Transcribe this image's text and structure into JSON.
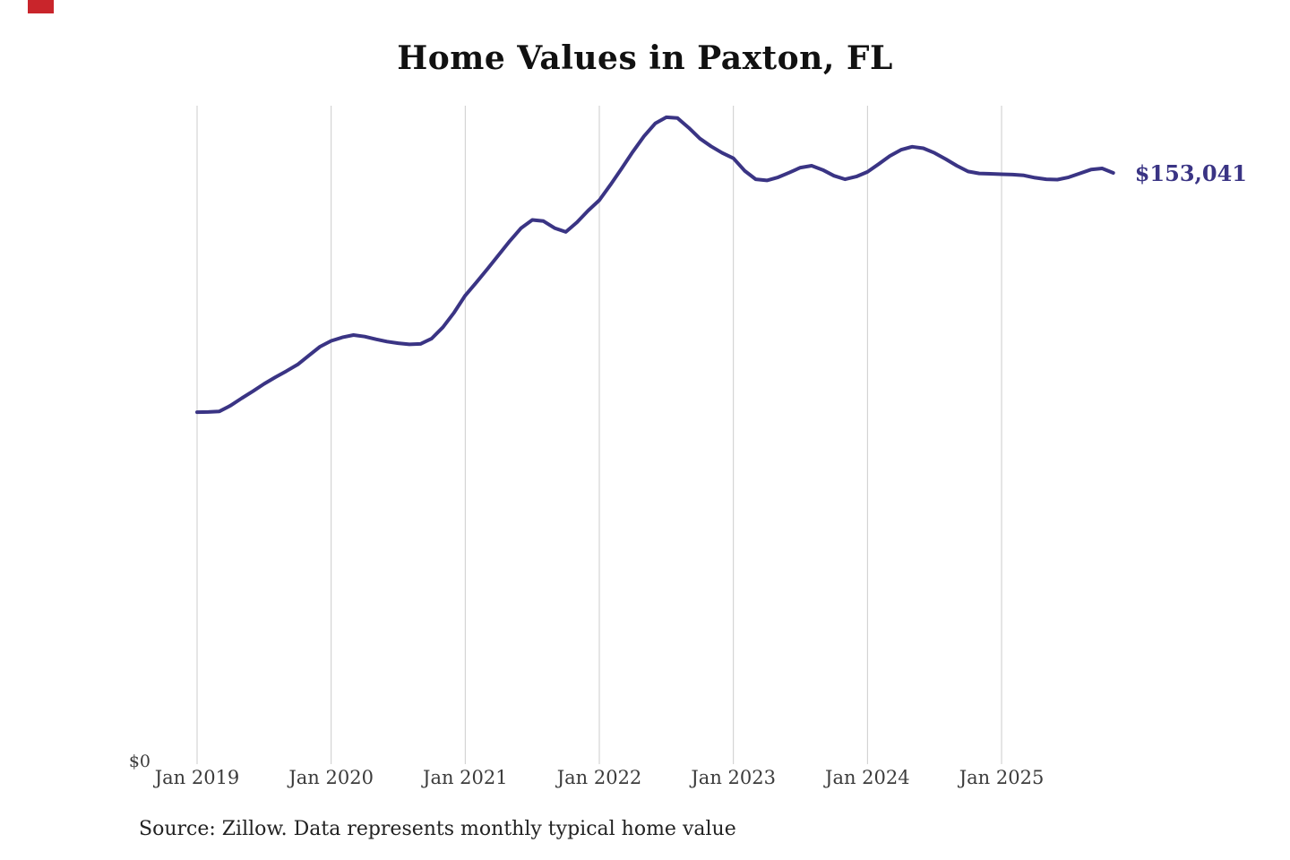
{
  "title": "Home Values in Paxton, FL",
  "end_label": "$153,041",
  "source": "Source: Zillow. Data represents monthly typical home value",
  "y_axis": {
    "zero_label": "$0"
  },
  "x_axis": {
    "tick_labels": [
      "Jan 2019",
      "Jan 2020",
      "Jan 2021",
      "Jan 2022",
      "Jan 2023",
      "Jan 2024",
      "Jan 2025"
    ]
  },
  "colors": {
    "line": "#3a3484",
    "end_label": "#3a3484",
    "gridline": "#cccccc",
    "axis_text": "#3b3b3b",
    "title_text": "#111111",
    "source_text": "#222222",
    "background": "#ffffff",
    "clipped_corner_element": "#c9252b"
  },
  "chart_data": {
    "type": "line",
    "title": "Home Values in Paxton, FL",
    "xlabel": "",
    "ylabel": "",
    "ylim": [
      0,
      170000
    ],
    "grid": "vertical-only",
    "legend": "none",
    "annotation": {
      "text": "$153,041",
      "position": "end-of-line"
    },
    "x": [
      "2019-01",
      "2019-02",
      "2019-03",
      "2019-04",
      "2019-05",
      "2019-06",
      "2019-07",
      "2019-08",
      "2019-09",
      "2019-10",
      "2019-11",
      "2019-12",
      "2020-01",
      "2020-02",
      "2020-03",
      "2020-04",
      "2020-05",
      "2020-06",
      "2020-07",
      "2020-08",
      "2020-09",
      "2020-10",
      "2020-11",
      "2020-12",
      "2021-01",
      "2021-02",
      "2021-03",
      "2021-04",
      "2021-05",
      "2021-06",
      "2021-07",
      "2021-08",
      "2021-09",
      "2021-10",
      "2021-11",
      "2021-12",
      "2022-01",
      "2022-02",
      "2022-03",
      "2022-04",
      "2022-05",
      "2022-06",
      "2022-07",
      "2022-08",
      "2022-09",
      "2022-10",
      "2022-11",
      "2022-12",
      "2023-01",
      "2023-02",
      "2023-03",
      "2023-04",
      "2023-05",
      "2023-06",
      "2023-07",
      "2023-08",
      "2023-09",
      "2023-10",
      "2023-11",
      "2023-12",
      "2024-01",
      "2024-02",
      "2024-03",
      "2024-04",
      "2024-05",
      "2024-06",
      "2024-07",
      "2024-08",
      "2024-09",
      "2024-10",
      "2024-11",
      "2024-12",
      "2025-01",
      "2025-02",
      "2025-03",
      "2025-04",
      "2025-05",
      "2025-06",
      "2025-07",
      "2025-08",
      "2025-09",
      "2025-10",
      "2025-11"
    ],
    "values": [
      91300,
      91350,
      91500,
      93000,
      94900,
      96700,
      98600,
      100300,
      101900,
      103600,
      105900,
      108200,
      109700,
      110600,
      111200,
      110800,
      110100,
      109500,
      109100,
      108800,
      108900,
      110300,
      113200,
      117000,
      121400,
      124800,
      128300,
      131900,
      135500,
      138800,
      140900,
      140600,
      138800,
      137800,
      140300,
      143300,
      146000,
      150000,
      154200,
      158500,
      162500,
      165800,
      167400,
      167200,
      164700,
      161900,
      159900,
      158200,
      156800,
      153600,
      151400,
      151100,
      151900,
      153100,
      154400,
      154900,
      153800,
      152300,
      151400,
      152100,
      153300,
      155300,
      157400,
      159000,
      159800,
      159400,
      158200,
      156600,
      154900,
      153400,
      152900,
      152800,
      152700,
      152600,
      152400,
      151800,
      151400,
      151300,
      151900,
      152900,
      153900,
      154200,
      153041
    ]
  }
}
